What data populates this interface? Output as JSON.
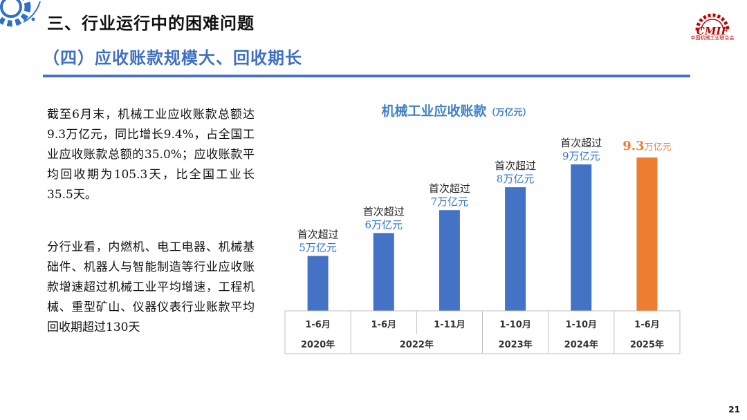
{
  "header": {
    "title": "三、行业运行中的困难问题",
    "subtitle": "（四）应收账款规模大、回收期长"
  },
  "logo": {
    "brand_text": "CMIF",
    "org_name": "中国机械工业联合会",
    "accent_color": "#c00000"
  },
  "body": {
    "paragraph1": "截至6月末，机械工业应收账款总额达9.3万亿元，同比增长9.4%，占全国工业应收账款总额的35.0%；应收账款平均回收期为105.3天，比全国工业长35.5天。",
    "paragraph2": "分行业看，内燃机、电工电器、机械基础件、机器人与智能制造等行业应收账款增速超过机械工业平均增速，工程机械、重型矿山、仪器仪表行业账款平均回收期超过130天"
  },
  "chart_data": {
    "type": "bar",
    "title": "机械工业应收账款",
    "unit": "（万亿元）",
    "categories": [
      "1-6月",
      "1-6月",
      "1-11月",
      "1-10月",
      "1-10月",
      "1-6月"
    ],
    "year_groups": [
      {
        "label": "2020年",
        "span": 1
      },
      {
        "label": "2022年",
        "span": 2
      },
      {
        "label": "2023年",
        "span": 1
      },
      {
        "label": "2024年",
        "span": 1
      },
      {
        "label": "2025年",
        "span": 1
      }
    ],
    "values": [
      5,
      6,
      7,
      8,
      9,
      9.3
    ],
    "annotations": [
      {
        "line1": "首次超过",
        "line2": "5万亿元"
      },
      {
        "line1": "首次超过",
        "line2": "6万亿元"
      },
      {
        "line1": "首次超过",
        "line2": "7万亿元"
      },
      {
        "line1": "首次超过",
        "line2": "8万亿元"
      },
      {
        "line1": "首次超过",
        "line2": "9万亿元"
      },
      {
        "value": "9.3",
        "unit": "万亿元"
      }
    ],
    "colors": {
      "default": "#4472c4",
      "highlight": "#ed7d31",
      "annotation": "#2e75d4"
    },
    "ylim": [
      2.6,
      9.6
    ],
    "grid": false
  },
  "page_number": "21"
}
